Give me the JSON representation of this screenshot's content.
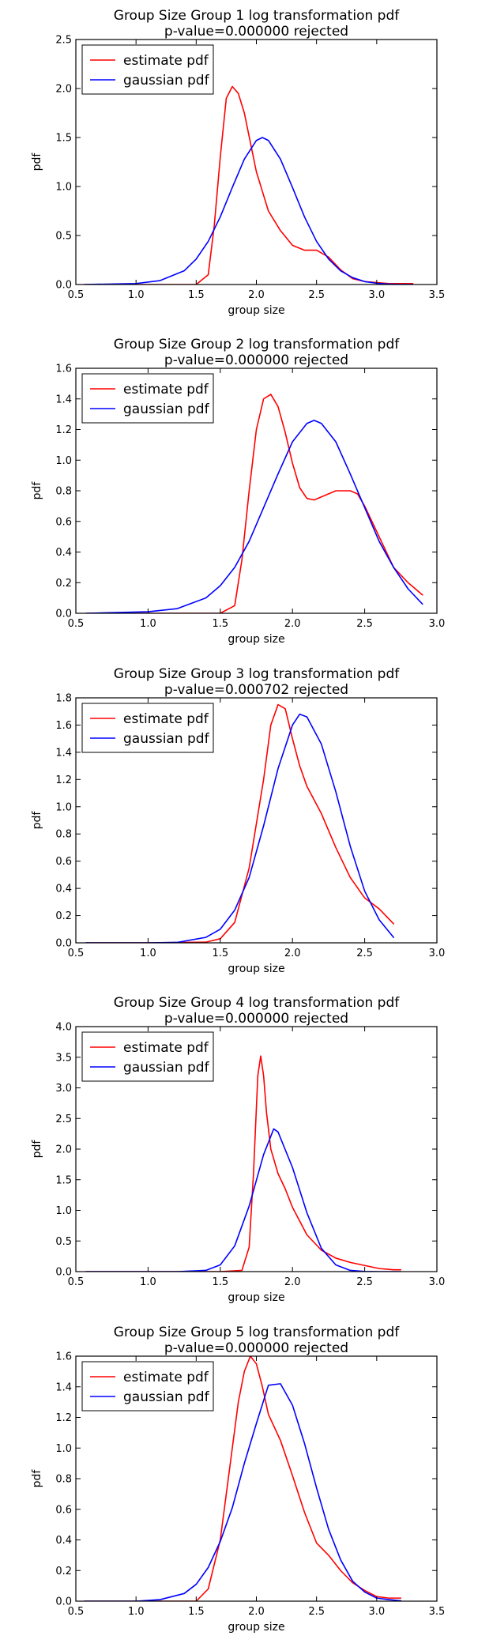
{
  "chart_data": [
    {
      "type": "line",
      "title": "Group Size Group 1 log transformation pdf",
      "subtitle": "p-value=0.000000  rejected",
      "xlabel": "group size",
      "ylabel": "pdf",
      "xlim": [
        0.5,
        3.5
      ],
      "ylim": [
        0,
        2.5
      ],
      "xticks": [
        "0.5",
        "1.0",
        "1.5",
        "2.0",
        "2.5",
        "3.0",
        "3.5"
      ],
      "yticks": [
        "0.0",
        "0.5",
        "1.0",
        "1.5",
        "2.0",
        "2.5"
      ],
      "grid": false,
      "legend": "top-left",
      "series": [
        {
          "name": "estimate pdf",
          "color": "#ff0000",
          "x": [
            0.57,
            1.0,
            1.5,
            1.6,
            1.65,
            1.7,
            1.75,
            1.8,
            1.85,
            1.9,
            1.95,
            2.0,
            2.05,
            2.1,
            2.2,
            2.3,
            2.4,
            2.5,
            2.6,
            2.7,
            2.8,
            2.9,
            3.0,
            3.1,
            3.2,
            3.3
          ],
          "y": [
            0.0,
            0.0,
            0.0,
            0.1,
            0.6,
            1.3,
            1.9,
            2.02,
            1.95,
            1.75,
            1.45,
            1.15,
            0.95,
            0.75,
            0.55,
            0.4,
            0.35,
            0.35,
            0.28,
            0.15,
            0.06,
            0.03,
            0.02,
            0.01,
            0.01,
            0.01
          ]
        },
        {
          "name": "gaussian pdf",
          "color": "#0000ff",
          "x": [
            0.57,
            1.0,
            1.2,
            1.4,
            1.5,
            1.6,
            1.7,
            1.8,
            1.9,
            2.0,
            2.05,
            2.1,
            2.2,
            2.3,
            2.4,
            2.5,
            2.6,
            2.7,
            2.8,
            2.9,
            3.0,
            3.1,
            3.2,
            3.3
          ],
          "y": [
            0.0,
            0.01,
            0.04,
            0.14,
            0.26,
            0.44,
            0.69,
            0.99,
            1.28,
            1.47,
            1.5,
            1.47,
            1.28,
            0.99,
            0.69,
            0.44,
            0.26,
            0.14,
            0.07,
            0.03,
            0.013,
            0.005,
            0.002,
            0.001
          ]
        }
      ]
    },
    {
      "type": "line",
      "title": "Group Size Group 2 log transformation pdf",
      "subtitle": "p-value=0.000000  rejected",
      "xlabel": "group size",
      "ylabel": "pdf",
      "xlim": [
        0.5,
        3.0
      ],
      "ylim": [
        0,
        1.6
      ],
      "xticks": [
        "0.5",
        "1.0",
        "1.5",
        "2.0",
        "2.5",
        "3.0"
      ],
      "yticks": [
        "0.0",
        "0.2",
        "0.4",
        "0.6",
        "0.8",
        "1.0",
        "1.2",
        "1.4",
        "1.6"
      ],
      "grid": false,
      "legend": "top-left",
      "series": [
        {
          "name": "estimate pdf",
          "color": "#ff0000",
          "x": [
            0.57,
            1.0,
            1.5,
            1.6,
            1.65,
            1.7,
            1.75,
            1.8,
            1.85,
            1.9,
            1.95,
            2.0,
            2.05,
            2.1,
            2.15,
            2.2,
            2.3,
            2.4,
            2.45,
            2.5,
            2.6,
            2.7,
            2.8,
            2.9
          ],
          "y": [
            0.0,
            0.0,
            0.0,
            0.05,
            0.35,
            0.8,
            1.2,
            1.4,
            1.43,
            1.35,
            1.18,
            0.98,
            0.82,
            0.75,
            0.74,
            0.76,
            0.8,
            0.8,
            0.78,
            0.7,
            0.5,
            0.3,
            0.2,
            0.12
          ]
        },
        {
          "name": "gaussian pdf",
          "color": "#0000ff",
          "x": [
            0.57,
            1.0,
            1.2,
            1.4,
            1.5,
            1.6,
            1.7,
            1.8,
            1.9,
            2.0,
            2.1,
            2.15,
            2.2,
            2.3,
            2.4,
            2.5,
            2.6,
            2.7,
            2.8,
            2.9
          ],
          "y": [
            0.0,
            0.01,
            0.03,
            0.1,
            0.18,
            0.3,
            0.47,
            0.69,
            0.91,
            1.12,
            1.24,
            1.26,
            1.24,
            1.12,
            0.91,
            0.69,
            0.47,
            0.3,
            0.16,
            0.06
          ]
        }
      ]
    },
    {
      "type": "line",
      "title": "Group Size Group 3 log transformation pdf",
      "subtitle": "p-value=0.000702  rejected",
      "xlabel": "group size",
      "ylabel": "pdf",
      "xlim": [
        0.5,
        3.0
      ],
      "ylim": [
        0,
        1.8
      ],
      "xticks": [
        "0.5",
        "1.0",
        "1.5",
        "2.0",
        "2.5",
        "3.0"
      ],
      "yticks": [
        "0.0",
        "0.2",
        "0.4",
        "0.6",
        "0.8",
        "1.0",
        "1.2",
        "1.4",
        "1.6",
        "1.8"
      ],
      "grid": false,
      "legend": "top-left",
      "series": [
        {
          "name": "estimate pdf",
          "color": "#ff0000",
          "x": [
            0.57,
            1.0,
            1.4,
            1.5,
            1.6,
            1.7,
            1.8,
            1.85,
            1.9,
            1.95,
            2.0,
            2.05,
            2.1,
            2.2,
            2.3,
            2.4,
            2.5,
            2.6,
            2.7
          ],
          "y": [
            0.0,
            0.0,
            0.005,
            0.03,
            0.15,
            0.55,
            1.2,
            1.6,
            1.75,
            1.72,
            1.5,
            1.3,
            1.15,
            0.95,
            0.7,
            0.48,
            0.33,
            0.25,
            0.14
          ]
        },
        {
          "name": "gaussian pdf",
          "color": "#0000ff",
          "x": [
            0.57,
            1.0,
            1.2,
            1.4,
            1.5,
            1.6,
            1.7,
            1.8,
            1.9,
            2.0,
            2.05,
            2.1,
            2.2,
            2.3,
            2.4,
            2.5,
            2.6,
            2.7
          ],
          "y": [
            0.0,
            0.0,
            0.003,
            0.04,
            0.1,
            0.24,
            0.48,
            0.86,
            1.28,
            1.6,
            1.68,
            1.66,
            1.46,
            1.11,
            0.71,
            0.38,
            0.17,
            0.04
          ]
        }
      ]
    },
    {
      "type": "line",
      "title": "Group Size Group 4 log transformation pdf",
      "subtitle": "p-value=0.000000  rejected",
      "xlabel": "group size",
      "ylabel": "pdf",
      "xlim": [
        0.5,
        3.0
      ],
      "ylim": [
        0,
        4.0
      ],
      "xticks": [
        "0.5",
        "1.0",
        "1.5",
        "2.0",
        "2.5",
        "3.0"
      ],
      "yticks": [
        "0.0",
        "0.5",
        "1.0",
        "1.5",
        "2.0",
        "2.5",
        "3.0",
        "3.5",
        "4.0"
      ],
      "grid": false,
      "legend": "top-left",
      "series": [
        {
          "name": "estimate pdf",
          "color": "#ff0000",
          "x": [
            0.57,
            1.0,
            1.5,
            1.65,
            1.7,
            1.73,
            1.76,
            1.78,
            1.8,
            1.82,
            1.85,
            1.9,
            1.95,
            2.0,
            2.1,
            2.2,
            2.3,
            2.4,
            2.5,
            2.6,
            2.7,
            2.75
          ],
          "y": [
            0.0,
            0.0,
            0.0,
            0.02,
            0.4,
            1.6,
            3.2,
            3.52,
            3.2,
            2.6,
            2.0,
            1.6,
            1.35,
            1.05,
            0.6,
            0.35,
            0.22,
            0.15,
            0.1,
            0.05,
            0.03,
            0.03
          ]
        },
        {
          "name": "gaussian pdf",
          "color": "#0000ff",
          "x": [
            0.57,
            1.0,
            1.2,
            1.4,
            1.5,
            1.6,
            1.7,
            1.8,
            1.87,
            1.9,
            2.0,
            2.1,
            2.2,
            2.3,
            2.4,
            2.5,
            2.6,
            2.7,
            2.75
          ],
          "y": [
            0.0,
            0.0,
            0.0,
            0.02,
            0.11,
            0.42,
            1.07,
            1.91,
            2.33,
            2.28,
            1.7,
            0.96,
            0.38,
            0.11,
            0.02,
            0.003,
            0.0,
            0.0,
            0.0
          ]
        }
      ]
    },
    {
      "type": "line",
      "title": "Group Size Group 5 log transformation pdf",
      "subtitle": "p-value=0.000000  rejected",
      "xlabel": "group size",
      "ylabel": "pdf",
      "xlim": [
        0.5,
        3.5
      ],
      "ylim": [
        0,
        1.6
      ],
      "xticks": [
        "0.5",
        "1.0",
        "1.5",
        "2.0",
        "2.5",
        "3.0",
        "3.5"
      ],
      "yticks": [
        "0.0",
        "0.2",
        "0.4",
        "0.6",
        "0.8",
        "1.0",
        "1.2",
        "1.4",
        "1.6"
      ],
      "grid": false,
      "legend": "top-left",
      "series": [
        {
          "name": "estimate pdf",
          "color": "#ff0000",
          "x": [
            0.57,
            1.0,
            1.5,
            1.6,
            1.7,
            1.8,
            1.85,
            1.9,
            1.95,
            2.0,
            2.05,
            2.1,
            2.2,
            2.3,
            2.4,
            2.5,
            2.6,
            2.7,
            2.8,
            2.9,
            3.0,
            3.1,
            3.2
          ],
          "y": [
            0.0,
            0.0,
            0.0,
            0.08,
            0.4,
            1.0,
            1.3,
            1.5,
            1.6,
            1.55,
            1.4,
            1.22,
            1.05,
            0.82,
            0.58,
            0.38,
            0.3,
            0.2,
            0.12,
            0.07,
            0.03,
            0.02,
            0.02
          ]
        },
        {
          "name": "gaussian pdf",
          "color": "#0000ff",
          "x": [
            0.57,
            1.0,
            1.2,
            1.4,
            1.5,
            1.6,
            1.7,
            1.8,
            1.9,
            2.0,
            2.1,
            2.2,
            2.3,
            2.4,
            2.5,
            2.6,
            2.7,
            2.8,
            2.9,
            3.0,
            3.1,
            3.2
          ],
          "y": [
            0.0,
            0.0,
            0.01,
            0.05,
            0.11,
            0.22,
            0.39,
            0.61,
            0.9,
            1.16,
            1.41,
            1.42,
            1.28,
            1.03,
            0.74,
            0.47,
            0.27,
            0.13,
            0.06,
            0.02,
            0.01,
            0.003
          ]
        }
      ]
    }
  ]
}
